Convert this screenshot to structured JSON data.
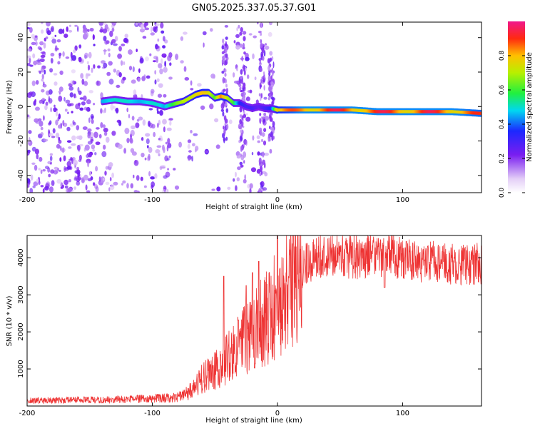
{
  "title": "GN05.2025.337.05.37.G01",
  "chart_data": [
    {
      "type": "heatmap",
      "xlabel": "Height of straight line (km)",
      "ylabel": "Frequency (Hz)",
      "xlim": [
        -200,
        163
      ],
      "ylim": [
        -50,
        49
      ],
      "x_ticks": [
        -200,
        -100,
        0,
        100
      ],
      "x_tick_labels": [
        "-200",
        "-100",
        "0",
        "100"
      ],
      "y_ticks": [
        -40,
        -20,
        0,
        20,
        40
      ],
      "y_tick_labels": [
        "-40",
        "-20",
        "0",
        "20",
        "40"
      ],
      "colorbar": {
        "label": "Normalized spectral amplitude",
        "range": [
          0,
          1
        ],
        "ticks": [
          0.0,
          0.2,
          0.4,
          0.6,
          0.8
        ],
        "tick_labels": [
          "0.0",
          "0.2",
          "0.4",
          "0.6",
          "0.8"
        ]
      },
      "ridge": {
        "x": [
          -140,
          -130,
          -120,
          -110,
          -100,
          -95,
          -90,
          -85,
          -80,
          -75,
          -70,
          -65,
          -60,
          -55,
          -50,
          -45,
          -40,
          -35,
          -30,
          -25,
          -20,
          -15,
          -10,
          -5,
          0,
          20,
          40,
          60,
          80,
          100,
          120,
          140,
          163
        ],
        "y": [
          3,
          4,
          3,
          3,
          2,
          1,
          0,
          1,
          2,
          3,
          5,
          7,
          8,
          8,
          5,
          6,
          5,
          2,
          2,
          0,
          -1,
          0,
          -1,
          -1,
          -2,
          -2,
          -2,
          -2,
          -3,
          -3,
          -3,
          -3,
          -4
        ],
        "amplitude": [
          0.45,
          0.5,
          0.5,
          0.45,
          0.5,
          0.5,
          0.45,
          0.55,
          0.65,
          0.7,
          0.7,
          0.75,
          0.8,
          0.75,
          0.6,
          0.85,
          0.7,
          0.6,
          0.35,
          0.3,
          0.3,
          0.25,
          0.3,
          0.35,
          0.8,
          0.95,
          0.95,
          0.95,
          0.95,
          0.95,
          0.95,
          0.95,
          0.9
        ]
      },
      "grid": false
    },
    {
      "type": "line",
      "xlabel": "Height of straight line (km)",
      "ylabel": "SNR (10 * v/v)",
      "xlim": [
        -200,
        163
      ],
      "ylim": [
        0,
        4600
      ],
      "x_ticks": [
        -200,
        -100,
        0,
        100
      ],
      "x_tick_labels": [
        "-200",
        "-100",
        "0",
        "100"
      ],
      "y_ticks": [
        1000,
        2000,
        3000,
        4000
      ],
      "y_tick_labels": [
        "1000",
        "2000",
        "3000",
        "4000"
      ],
      "color": "#ee3333",
      "series": [
        {
          "x": [
            -200,
            -180,
            -160,
            -140,
            -120,
            -100,
            -90,
            -80,
            -75,
            -70,
            -65,
            -60,
            -55,
            -50,
            -45,
            -40,
            -35,
            -30,
            -25,
            -20,
            -15,
            -10,
            -5,
            0,
            5,
            10,
            15,
            20,
            25,
            30,
            35,
            40,
            50,
            60,
            70,
            80,
            90,
            100,
            110,
            120,
            130,
            140,
            150,
            163
          ],
          "y": [
            150,
            150,
            160,
            160,
            180,
            200,
            220,
            250,
            300,
            400,
            550,
            750,
            850,
            950,
            1100,
            1300,
            1450,
            1650,
            1800,
            1950,
            2150,
            2350,
            2550,
            2800,
            3050,
            3300,
            3500,
            3750,
            3900,
            4000,
            4050,
            4050,
            4050,
            4000,
            4050,
            4100,
            4050,
            3950,
            3900,
            3900,
            3850,
            3850,
            3800,
            3850
          ]
        }
      ],
      "spikes": [
        {
          "x": -43,
          "y": 3500
        },
        {
          "x": -25,
          "y": 3250
        },
        {
          "x": -20,
          "y": 3600
        },
        {
          "x": -15,
          "y": 3900
        },
        {
          "x": 0,
          "y": 4600
        }
      ],
      "noise_amplitude": 0.15,
      "grid": false
    }
  ]
}
